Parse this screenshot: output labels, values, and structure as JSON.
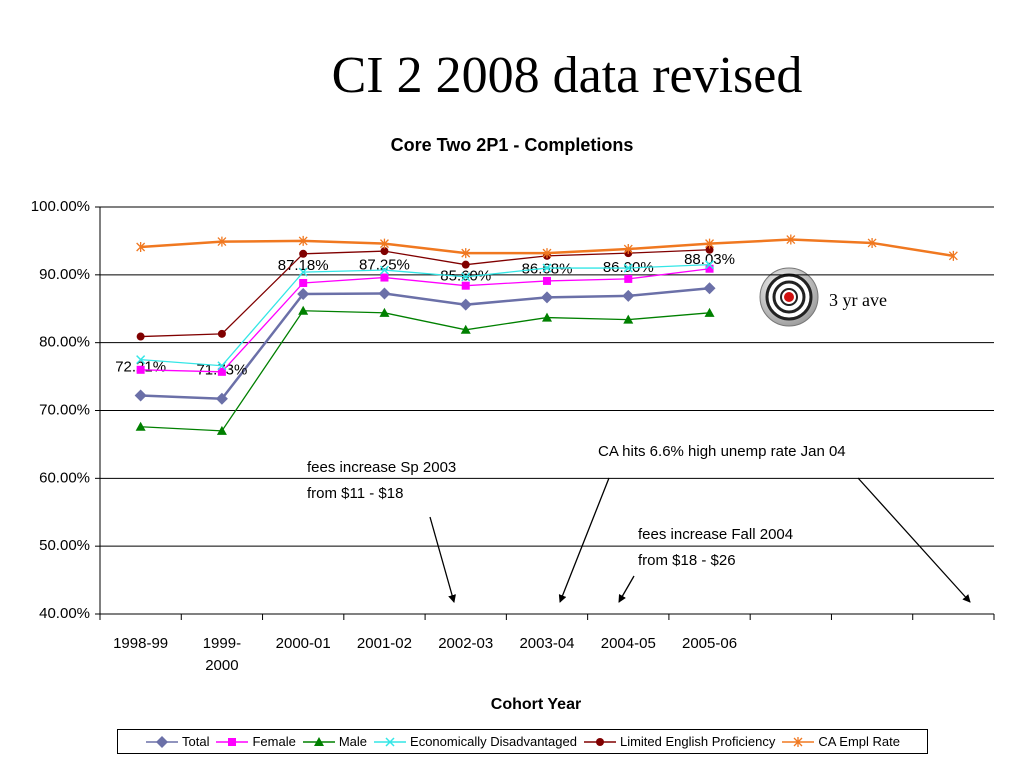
{
  "slide_title": "CI 2 2008 data revised",
  "chart_data": {
    "type": "line",
    "title": "Core Two 2P1 - Completions",
    "x_label": "Cohort Year",
    "categories": [
      "1998-99",
      "1999-2000",
      "2000-01",
      "2001-02",
      "2002-03",
      "2003-04",
      "2004-05",
      "2005-06",
      null,
      null,
      null
    ],
    "ylim": [
      40,
      100
    ],
    "yticks": [
      {
        "value": 40,
        "label": "40.00%"
      },
      {
        "value": 50,
        "label": "50.00%"
      },
      {
        "value": 60,
        "label": "60.00%"
      },
      {
        "value": 70,
        "label": "70.00%"
      },
      {
        "value": 80,
        "label": "80.00%"
      },
      {
        "value": 90,
        "label": "90.00%"
      },
      {
        "value": 100,
        "label": "100.00%"
      }
    ],
    "grid": true,
    "series": [
      {
        "name": "Total",
        "color": "#6b70a8",
        "marker": "diamond",
        "values": [
          72.21,
          71.73,
          87.18,
          87.25,
          85.6,
          86.68,
          86.9,
          88.03,
          null,
          null,
          null
        ],
        "value_labels": [
          "72.21%",
          "71.73%",
          "87.18%",
          "87.25%",
          "85.60%",
          "86.68%",
          "86.90%",
          "88.03%",
          null,
          null,
          null
        ]
      },
      {
        "name": "Female",
        "color": "#ff00ff",
        "marker": "square",
        "values": [
          76.0,
          75.7,
          88.8,
          89.6,
          88.4,
          89.1,
          89.4,
          90.9,
          null,
          null,
          null
        ]
      },
      {
        "name": "Male",
        "color": "#008000",
        "marker": "triangle",
        "values": [
          67.6,
          67.0,
          84.7,
          84.4,
          81.9,
          83.7,
          83.4,
          84.4,
          null,
          null,
          null
        ]
      },
      {
        "name": "Economically Disadvantaged",
        "color": "#33e6e6",
        "marker": "x",
        "values": [
          77.5,
          76.6,
          90.4,
          90.7,
          89.7,
          91.0,
          91.0,
          91.5,
          null,
          null,
          null
        ]
      },
      {
        "name": "Limited English Proficiency",
        "color": "#800000",
        "marker": "circle",
        "values": [
          80.9,
          81.3,
          93.1,
          93.5,
          91.5,
          92.8,
          93.2,
          93.7,
          null,
          null,
          null
        ]
      },
      {
        "name": "CA Empl Rate",
        "color": "#f07820",
        "marker": "asterisk",
        "values": [
          94.1,
          94.9,
          95.0,
          94.6,
          93.2,
          93.2,
          93.8,
          94.6,
          95.2,
          94.7,
          92.8
        ]
      }
    ],
    "annotations": [
      {
        "lines": [
          "fees increase Sp 2003",
          "from $11 - $18"
        ]
      },
      {
        "lines": [
          "CA hits 6.6% high unemp rate Jan 04"
        ]
      },
      {
        "lines": [
          "fees increase Fall 2004",
          "from $18 - $26"
        ]
      },
      {
        "lines": [
          "3 yr ave"
        ]
      }
    ]
  }
}
